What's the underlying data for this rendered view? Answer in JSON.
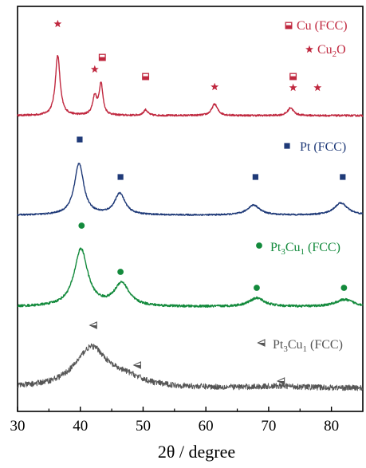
{
  "chart_data": {
    "type": "line",
    "title": "",
    "xlabel": "2θ / degree",
    "ylabel": "",
    "xlim": [
      30,
      85
    ],
    "x_ticks": [
      30,
      40,
      50,
      60,
      70,
      80
    ],
    "y_ticks_shown": false,
    "grid": false,
    "legend_placement": "inline-right-of-each-trace",
    "series": [
      {
        "key": "cu",
        "color": "#c0283f",
        "baseline": 0.0,
        "noise": 0.006,
        "peaks": [
          {
            "x": 36.4,
            "height": 0.42,
            "width": 0.45
          },
          {
            "x": 42.3,
            "height": 0.13,
            "width": 0.4
          },
          {
            "x": 43.3,
            "height": 0.22,
            "width": 0.35
          },
          {
            "x": 50.4,
            "height": 0.04,
            "width": 0.4
          },
          {
            "x": 61.4,
            "height": 0.08,
            "width": 0.55
          },
          {
            "x": 73.5,
            "height": 0.055,
            "width": 0.55
          }
        ]
      },
      {
        "key": "pt",
        "color": "#1f3a78",
        "baseline": 0.0,
        "noise": 0.005,
        "peaks": [
          {
            "x": 39.8,
            "height": 0.36,
            "width": 0.9
          },
          {
            "x": 46.3,
            "height": 0.15,
            "width": 1.0
          },
          {
            "x": 67.6,
            "height": 0.07,
            "width": 1.2
          },
          {
            "x": 81.5,
            "height": 0.085,
            "width": 1.3
          }
        ]
      },
      {
        "key": "pt3cu1",
        "color": "#138a3c",
        "baseline": 0.0,
        "noise": 0.008,
        "peaks": [
          {
            "x": 40.1,
            "height": 0.4,
            "width": 1.3
          },
          {
            "x": 46.6,
            "height": 0.16,
            "width": 1.4
          },
          {
            "x": 68.1,
            "height": 0.06,
            "width": 1.5
          },
          {
            "x": 82.1,
            "height": 0.05,
            "width": 1.8
          }
        ]
      },
      {
        "key": "pt3cu1_amorphous",
        "color": "#555555",
        "baseline": 0.0,
        "noise": 0.02,
        "peaks": [
          {
            "x": 41.8,
            "height": 0.28,
            "width": 3.2
          },
          {
            "x": 47.5,
            "height": 0.05,
            "width": 3.0
          },
          {
            "x": 72.0,
            "height": 0.012,
            "width": 4.0
          }
        ]
      }
    ],
    "markers": [
      {
        "series": "cu",
        "symbol": "star",
        "x": 36.4
      },
      {
        "series": "cu",
        "symbol": "star",
        "x": 42.3
      },
      {
        "series": "cu",
        "symbol": "square-half",
        "x": 43.5
      },
      {
        "series": "cu",
        "symbol": "square-half",
        "x": 50.4
      },
      {
        "series": "cu",
        "symbol": "star",
        "x": 61.4
      },
      {
        "series": "cu",
        "symbol": "square-half",
        "x": 73.9
      },
      {
        "series": "cu",
        "symbol": "star",
        "x": 73.9
      },
      {
        "series": "cu",
        "symbol": "star",
        "x": 77.8
      },
      {
        "series": "pt",
        "symbol": "square",
        "x": 39.9
      },
      {
        "series": "pt",
        "symbol": "square",
        "x": 46.4
      },
      {
        "series": "pt",
        "symbol": "square",
        "x": 67.9
      },
      {
        "series": "pt",
        "symbol": "square",
        "x": 81.8
      },
      {
        "series": "pt3cu1",
        "symbol": "circle",
        "x": 40.2
      },
      {
        "series": "pt3cu1",
        "symbol": "circle",
        "x": 46.4
      },
      {
        "series": "pt3cu1",
        "symbol": "circle",
        "x": 68.1
      },
      {
        "series": "pt3cu1",
        "symbol": "circle",
        "x": 82.0
      },
      {
        "series": "pt3cu1_amorphous",
        "symbol": "triangle-left",
        "x": 42.1
      },
      {
        "series": "pt3cu1_amorphous",
        "symbol": "triangle-left",
        "x": 49.1
      },
      {
        "series": "pt3cu1_amorphous",
        "symbol": "triangle-left",
        "x": 72.0
      }
    ],
    "legend": [
      {
        "series": "cu",
        "symbol": "square-half",
        "label": "Cu (FCC)"
      },
      {
        "series": "cu",
        "symbol": "star",
        "label": "Cu2O",
        "label_parts": [
          {
            "t": "Cu"
          },
          {
            "t": "2",
            "sub": true
          },
          {
            "t": "O"
          }
        ]
      },
      {
        "series": "pt",
        "symbol": "square",
        "label": "Pt (FCC)"
      },
      {
        "series": "pt3cu1",
        "symbol": "circle",
        "label": "Pt3Cu1 (FCC)",
        "label_parts": [
          {
            "t": "Pt"
          },
          {
            "t": "3",
            "sub": true
          },
          {
            "t": "Cu"
          },
          {
            "t": "1",
            "sub": true
          },
          {
            "t": " (FCC)"
          }
        ]
      },
      {
        "series": "pt3cu1_amorphous",
        "symbol": "triangle-left",
        "label": "Pt3Cu1 (FCC)",
        "label_parts": [
          {
            "t": "Pt"
          },
          {
            "t": "3",
            "sub": true
          },
          {
            "t": "Cu"
          },
          {
            "t": "1",
            "sub": true
          },
          {
            "t": " (FCC)"
          }
        ]
      }
    ]
  }
}
